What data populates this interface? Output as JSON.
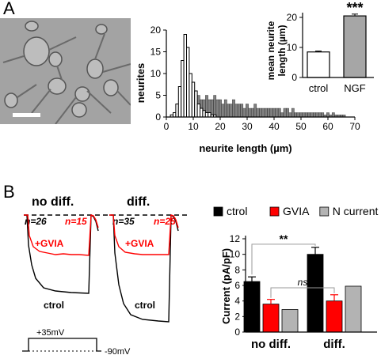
{
  "panels": {
    "a_label": "A",
    "b_label": "B"
  },
  "histogram": {
    "chart_data": {
      "type": "bar",
      "xlabel": "neurite length (µm)",
      "ylabel": "neurites",
      "xlim": [
        0,
        70
      ],
      "ylim": [
        0,
        20
      ],
      "xticks": [
        0,
        10,
        20,
        30,
        40,
        50,
        60,
        70
      ],
      "yticks": [
        0,
        5,
        10,
        15,
        20
      ],
      "bin_width": 1,
      "series": [
        {
          "fill": "#ffffff",
          "values": [
            {
              "x": 2,
              "y": 0.5
            },
            {
              "x": 3,
              "y": 1
            },
            {
              "x": 4,
              "y": 3
            },
            {
              "x": 5,
              "y": 7
            },
            {
              "x": 6,
              "y": 13
            },
            {
              "x": 7,
              "y": 19
            },
            {
              "x": 8,
              "y": 16
            },
            {
              "x": 9,
              "y": 10
            },
            {
              "x": 10,
              "y": 8
            },
            {
              "x": 11,
              "y": 6
            },
            {
              "x": 12,
              "y": 3
            },
            {
              "x": 13,
              "y": 2
            },
            {
              "x": 14,
              "y": 1.5
            },
            {
              "x": 15,
              "y": 1
            },
            {
              "x": 16,
              "y": 1
            },
            {
              "x": 17,
              "y": 0.5
            },
            {
              "x": 18,
              "y": 0.5
            }
          ]
        },
        {
          "fill": "#808080",
          "values": [
            {
              "x": 5,
              "y": 1
            },
            {
              "x": 6,
              "y": 2
            },
            {
              "x": 7,
              "y": 3
            },
            {
              "x": 8,
              "y": 4
            },
            {
              "x": 9,
              "y": 3
            },
            {
              "x": 10,
              "y": 3
            },
            {
              "x": 11,
              "y": 4
            },
            {
              "x": 12,
              "y": 5
            },
            {
              "x": 13,
              "y": 4
            },
            {
              "x": 14,
              "y": 4
            },
            {
              "x": 15,
              "y": 5
            },
            {
              "x": 16,
              "y": 4
            },
            {
              "x": 17,
              "y": 4
            },
            {
              "x": 18,
              "y": 5
            },
            {
              "x": 19,
              "y": 4
            },
            {
              "x": 20,
              "y": 4
            },
            {
              "x": 21,
              "y": 3
            },
            {
              "x": 22,
              "y": 4
            },
            {
              "x": 23,
              "y": 3
            },
            {
              "x": 24,
              "y": 3
            },
            {
              "x": 25,
              "y": 4
            },
            {
              "x": 26,
              "y": 3
            },
            {
              "x": 27,
              "y": 3
            },
            {
              "x": 28,
              "y": 3
            },
            {
              "x": 29,
              "y": 2
            },
            {
              "x": 30,
              "y": 3
            },
            {
              "x": 31,
              "y": 2
            },
            {
              "x": 32,
              "y": 2
            },
            {
              "x": 33,
              "y": 3
            },
            {
              "x": 34,
              "y": 2
            },
            {
              "x": 35,
              "y": 2
            },
            {
              "x": 36,
              "y": 2
            },
            {
              "x": 37,
              "y": 2
            },
            {
              "x": 38,
              "y": 2
            },
            {
              "x": 39,
              "y": 2
            },
            {
              "x": 40,
              "y": 2
            },
            {
              "x": 41,
              "y": 2
            },
            {
              "x": 42,
              "y": 2
            },
            {
              "x": 43,
              "y": 1
            },
            {
              "x": 44,
              "y": 2
            },
            {
              "x": 45,
              "y": 2
            },
            {
              "x": 46,
              "y": 1
            },
            {
              "x": 47,
              "y": 2
            },
            {
              "x": 48,
              "y": 1
            },
            {
              "x": 49,
              "y": 1
            },
            {
              "x": 50,
              "y": 1
            },
            {
              "x": 51,
              "y": 1
            },
            {
              "x": 52,
              "y": 1
            },
            {
              "x": 53,
              "y": 1
            },
            {
              "x": 54,
              "y": 1
            },
            {
              "x": 55,
              "y": 1
            },
            {
              "x": 56,
              "y": 1
            },
            {
              "x": 57,
              "y": 1
            },
            {
              "x": 58,
              "y": 1
            },
            {
              "x": 59,
              "y": 0.5
            },
            {
              "x": 60,
              "y": 1
            },
            {
              "x": 61,
              "y": 0.5
            },
            {
              "x": 62,
              "y": 1
            },
            {
              "x": 63,
              "y": 0.5
            },
            {
              "x": 64,
              "y": 0.5
            },
            {
              "x": 65,
              "y": 0.5
            },
            {
              "x": 66,
              "y": 0.5
            }
          ]
        }
      ]
    }
  },
  "inset": {
    "chart_data": {
      "type": "bar",
      "ylabel_line1": "mean neurite",
      "ylabel_line2": "length (µm)",
      "categories": [
        "ctrol",
        "NGF"
      ],
      "values": [
        8.5,
        20.5
      ],
      "errors": [
        0.3,
        0.6
      ],
      "fills": [
        "#ffffff",
        "#a6a6a6"
      ],
      "ylim": [
        0,
        20
      ],
      "yticks": [
        0,
        10,
        20
      ],
      "significance": "***"
    }
  },
  "traces": {
    "title_nodiff": "no diff.",
    "title_diff": "diff.",
    "n_nodiff_ctrl": "n=26",
    "n_nodiff_gvia": "n=15",
    "n_diff_ctrl": "n=35",
    "n_diff_gvia": "n=25",
    "gvia_label": "+GVIA",
    "ctrl_label": "ctrol",
    "pulse_label": "+35mV",
    "hold_label": "-90mV",
    "gvia_color": "#ff0000"
  },
  "current_bars": {
    "chart_data": {
      "type": "bar",
      "ylabel": "Current (pA/pF)",
      "ylim": [
        0,
        12
      ],
      "yticks": [
        0,
        2,
        4,
        6,
        8,
        10,
        12
      ],
      "groups": [
        "no diff.",
        "diff."
      ],
      "series": [
        {
          "name": "ctrol",
          "color": "#000000",
          "values": [
            6.5,
            10.0
          ],
          "errors": [
            0.6,
            0.9
          ]
        },
        {
          "name": "GVIA",
          "color": "#ff0000",
          "values": [
            3.6,
            4.0
          ],
          "errors": [
            0.6,
            0.8
          ]
        },
        {
          "name": "N current",
          "color": "#b3b3b3",
          "values": [
            2.9,
            5.9
          ],
          "errors": [
            0,
            0
          ]
        }
      ],
      "annotations": [
        "**",
        "ns"
      ]
    }
  }
}
